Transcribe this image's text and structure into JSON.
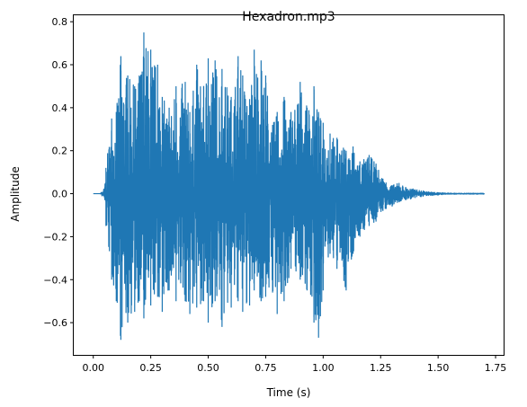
{
  "chart_data": {
    "type": "line",
    "title": "Hexadron.mp3",
    "xlabel": "Time (s)",
    "ylabel": "Amplitude",
    "xlim": [
      -0.085,
      1.785
    ],
    "ylim": [
      -0.75,
      0.83
    ],
    "grid": false,
    "x_ticks": [
      0.0,
      0.25,
      0.5,
      0.75,
      1.0,
      1.25,
      1.5,
      1.75
    ],
    "x_tick_labels": [
      "0.00",
      "0.25",
      "0.50",
      "0.75",
      "1.00",
      "1.25",
      "1.50",
      "1.75"
    ],
    "y_ticks": [
      -0.6,
      -0.4,
      -0.2,
      0.0,
      0.2,
      0.4,
      0.6,
      0.8
    ],
    "y_tick_labels": [
      "−0.6",
      "−0.4",
      "−0.2",
      "0.0",
      "0.2",
      "0.4",
      "0.6",
      "0.8"
    ],
    "series": [
      {
        "color": "#1f77b4",
        "envelope": {
          "x": [
            0.0,
            0.03,
            0.05,
            0.055,
            0.08,
            0.1,
            0.12,
            0.15,
            0.18,
            0.2,
            0.22,
            0.25,
            0.28,
            0.3,
            0.33,
            0.36,
            0.4,
            0.42,
            0.45,
            0.48,
            0.5,
            0.53,
            0.56,
            0.6,
            0.63,
            0.65,
            0.68,
            0.7,
            0.73,
            0.75,
            0.78,
            0.8,
            0.83,
            0.86,
            0.9,
            0.93,
            0.96,
            0.98,
            1.0,
            1.03,
            1.06,
            1.1,
            1.13,
            1.16,
            1.2,
            1.23,
            1.26,
            1.3,
            1.33,
            1.36,
            1.4,
            1.45,
            1.5,
            1.55,
            1.6,
            1.7
          ],
          "upper": [
            0.0,
            0.0,
            0.03,
            0.12,
            0.35,
            0.38,
            0.64,
            0.55,
            0.5,
            0.55,
            0.75,
            0.67,
            0.6,
            0.45,
            0.4,
            0.5,
            0.52,
            0.38,
            0.6,
            0.5,
            0.63,
            0.62,
            0.58,
            0.45,
            0.64,
            0.55,
            0.44,
            0.67,
            0.62,
            0.55,
            0.32,
            0.38,
            0.45,
            0.38,
            0.52,
            0.4,
            0.5,
            0.38,
            0.33,
            0.28,
            0.26,
            0.2,
            0.22,
            0.15,
            0.18,
            0.14,
            0.07,
            0.04,
            0.05,
            0.03,
            0.02,
            0.01,
            0.005,
            0.003,
            0.002,
            0.002
          ],
          "lower": [
            0.0,
            0.0,
            -0.03,
            -0.15,
            -0.4,
            -0.5,
            -0.68,
            -0.6,
            -0.55,
            -0.5,
            -0.58,
            -0.52,
            -0.48,
            -0.55,
            -0.45,
            -0.5,
            -0.5,
            -0.56,
            -0.53,
            -0.5,
            -0.6,
            -0.5,
            -0.62,
            -0.53,
            -0.5,
            -0.55,
            -0.52,
            -0.45,
            -0.5,
            -0.48,
            -0.46,
            -0.56,
            -0.5,
            -0.35,
            -0.4,
            -0.45,
            -0.6,
            -0.67,
            -0.45,
            -0.28,
            -0.35,
            -0.45,
            -0.28,
            -0.2,
            -0.15,
            -0.13,
            -0.08,
            -0.06,
            -0.04,
            -0.03,
            -0.02,
            -0.01,
            -0.006,
            -0.003,
            -0.002,
            -0.002
          ]
        }
      }
    ]
  }
}
